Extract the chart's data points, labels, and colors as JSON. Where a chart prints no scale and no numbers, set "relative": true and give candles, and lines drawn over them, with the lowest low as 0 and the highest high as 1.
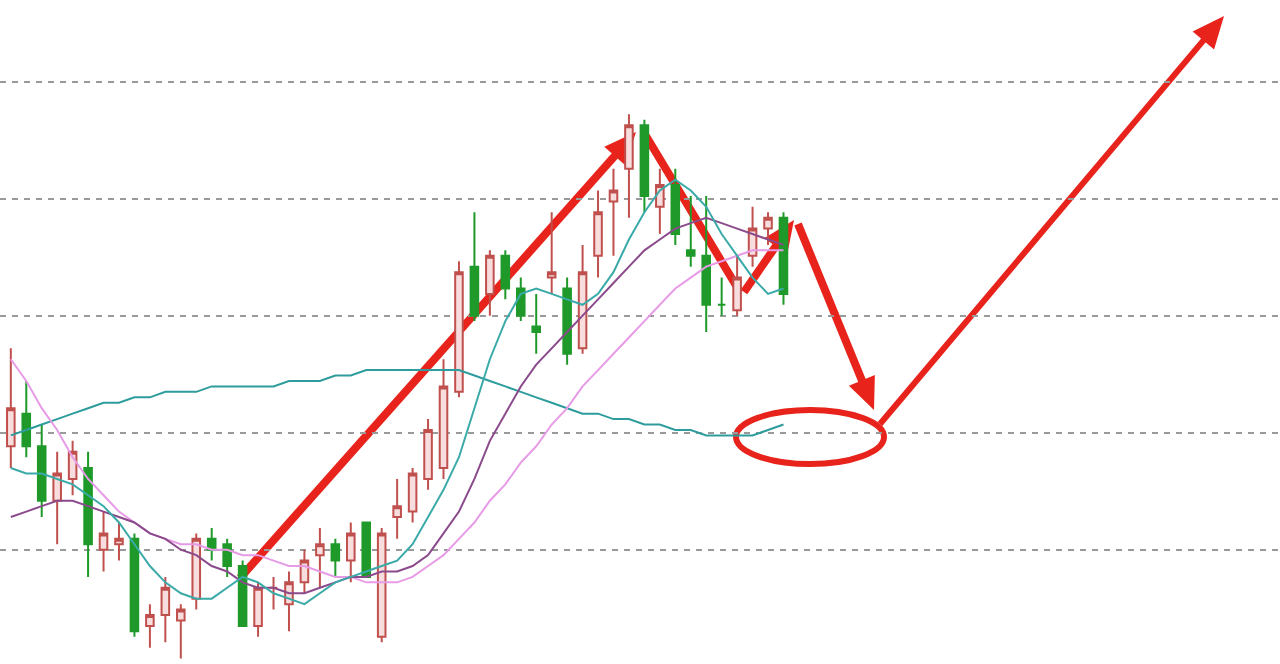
{
  "chart_data": {
    "type": "candlestick",
    "relative": true,
    "grid": "y",
    "categories": [
      null,
      null,
      null,
      null,
      null,
      null,
      null,
      null,
      null,
      null,
      null,
      null,
      null,
      null,
      null,
      null,
      null,
      null,
      null,
      null,
      null,
      null,
      null,
      null,
      null,
      null,
      null,
      null,
      null,
      null,
      null,
      null,
      null,
      null,
      null,
      null,
      null,
      null,
      null,
      null,
      null,
      null,
      null,
      null,
      null,
      null,
      null,
      null,
      null,
      null,
      null
    ],
    "ohlc": [
      [
        0.39,
        0.57,
        0.35,
        0.46
      ],
      [
        0.45,
        0.51,
        0.37,
        0.39
      ],
      [
        0.39,
        0.43,
        0.26,
        0.29
      ],
      [
        0.29,
        0.38,
        0.21,
        0.34
      ],
      [
        0.33,
        0.4,
        0.3,
        0.38
      ],
      [
        0.35,
        0.38,
        0.15,
        0.21
      ],
      [
        0.2,
        0.27,
        0.16,
        0.23
      ],
      [
        0.21,
        0.25,
        0.18,
        0.22
      ],
      [
        0.22,
        0.23,
        0.04,
        0.05
      ],
      [
        0.06,
        0.1,
        0.02,
        0.08
      ],
      [
        0.08,
        0.15,
        0.03,
        0.13
      ],
      [
        0.07,
        0.1,
        0,
        0.09
      ],
      [
        0.11,
        0.23,
        0.09,
        0.22
      ],
      [
        0.22,
        0.24,
        0.18,
        0.2
      ],
      [
        0.21,
        0.22,
        0.15,
        0.17
      ],
      [
        0.17,
        0.18,
        0.06,
        0.06
      ],
      [
        0.06,
        0.14,
        0.04,
        0.13
      ],
      [
        0.13,
        0.15,
        0.09,
        0.13
      ],
      [
        0.1,
        0.16,
        0.05,
        0.14
      ],
      [
        0.14,
        0.2,
        0.12,
        0.18
      ],
      [
        0.19,
        0.24,
        0.13,
        0.21
      ],
      [
        0.21,
        0.22,
        0.15,
        0.18
      ],
      [
        0.18,
        0.25,
        0.14,
        0.23
      ],
      [
        0.25,
        0.25,
        0.15,
        0.15
      ],
      [
        0.04,
        0.24,
        0.03,
        0.23
      ],
      [
        0.26,
        0.33,
        0.22,
        0.28
      ],
      [
        0.27,
        0.35,
        0.25,
        0.34
      ],
      [
        0.33,
        0.44,
        0.31,
        0.42
      ],
      [
        0.35,
        0.55,
        0.33,
        0.5
      ],
      [
        0.49,
        0.73,
        0.48,
        0.71
      ],
      [
        0.72,
        0.82,
        0.62,
        0.63
      ],
      [
        0.67,
        0.75,
        0.63,
        0.74
      ],
      [
        0.74,
        0.75,
        0.66,
        0.68
      ],
      [
        0.68,
        0.7,
        0.62,
        0.63
      ],
      [
        0.61,
        0.67,
        0.56,
        0.6
      ],
      [
        0.7,
        0.82,
        0.67,
        0.71
      ],
      [
        0.68,
        0.7,
        0.54,
        0.56
      ],
      [
        0.57,
        0.76,
        0.56,
        0.71
      ],
      [
        0.74,
        0.86,
        0.7,
        0.82
      ],
      [
        0.84,
        0.9,
        0.74,
        0.86
      ],
      [
        0.9,
        1.0,
        0.81,
        0.98
      ],
      [
        0.98,
        0.99,
        0.82,
        0.85
      ],
      [
        0.83,
        0.9,
        0.78,
        0.87
      ],
      [
        0.87,
        0.9,
        0.76,
        0.78
      ],
      [
        0.75,
        0.85,
        0.72,
        0.74
      ],
      [
        0.74,
        0.85,
        0.6,
        0.65
      ],
      [
        0.65,
        0.7,
        0.63,
        0.65
      ],
      [
        0.64,
        0.74,
        0.63,
        0.7
      ],
      [
        0.74,
        0.83,
        0.72,
        0.79
      ],
      [
        0.79,
        0.82,
        0.76,
        0.81
      ],
      [
        0.81,
        0.82,
        0.65,
        0.67
      ]
    ],
    "series": [
      {
        "type": "line",
        "color": "#2e9c9c",
        "values": [
          0.41,
          0.42,
          0.43,
          0.44,
          0.45,
          0.46,
          0.47,
          0.47,
          0.48,
          0.48,
          0.49,
          0.49,
          0.49,
          0.5,
          0.5,
          0.5,
          0.5,
          0.5,
          0.51,
          0.51,
          0.51,
          0.52,
          0.52,
          0.53,
          0.53,
          0.53,
          0.53,
          0.53,
          0.53,
          0.53,
          0.52,
          0.51,
          0.5,
          0.49,
          0.48,
          0.47,
          0.46,
          0.45,
          0.45,
          0.44,
          0.44,
          0.43,
          0.43,
          0.42,
          0.42,
          0.41,
          0.41,
          0.41,
          0.41,
          0.42,
          0.43
        ]
      },
      {
        "type": "line",
        "color": "#e79be7",
        "values": [
          0.55,
          0.51,
          0.46,
          0.42,
          0.37,
          0.33,
          0.3,
          0.27,
          0.25,
          0.23,
          0.22,
          0.21,
          0.21,
          0.2,
          0.2,
          0.19,
          0.19,
          0.18,
          0.17,
          0.17,
          0.16,
          0.15,
          0.15,
          0.14,
          0.14,
          0.14,
          0.15,
          0.17,
          0.19,
          0.22,
          0.25,
          0.29,
          0.32,
          0.36,
          0.39,
          0.43,
          0.46,
          0.5,
          0.53,
          0.56,
          0.59,
          0.62,
          0.65,
          0.68,
          0.7,
          0.72,
          0.73,
          0.74,
          0.75,
          0.75,
          0.75
        ]
      },
      {
        "type": "line",
        "color": "#8b4a8b",
        "values": [
          0.26,
          0.27,
          0.28,
          0.29,
          0.29,
          0.28,
          0.27,
          0.26,
          0.25,
          0.23,
          0.22,
          0.2,
          0.19,
          0.17,
          0.16,
          0.14,
          0.13,
          0.13,
          0.12,
          0.12,
          0.13,
          0.14,
          0.15,
          0.15,
          0.16,
          0.16,
          0.17,
          0.19,
          0.23,
          0.27,
          0.33,
          0.4,
          0.45,
          0.5,
          0.54,
          0.57,
          0.6,
          0.63,
          0.66,
          0.69,
          0.72,
          0.75,
          0.77,
          0.79,
          0.8,
          0.81,
          0.8,
          0.79,
          0.78,
          0.77,
          0.76
        ]
      },
      {
        "type": "line",
        "color": "#3aaaa8",
        "values": [
          0.35,
          0.34,
          0.34,
          0.33,
          0.32,
          0.3,
          0.28,
          0.25,
          0.21,
          0.17,
          0.14,
          0.12,
          0.11,
          0.11,
          0.13,
          0.15,
          0.14,
          0.12,
          0.11,
          0.1,
          0.12,
          0.14,
          0.15,
          0.16,
          0.17,
          0.18,
          0.21,
          0.26,
          0.31,
          0.37,
          0.46,
          0.55,
          0.62,
          0.67,
          0.68,
          0.67,
          0.66,
          0.65,
          0.67,
          0.71,
          0.77,
          0.82,
          0.86,
          0.88,
          0.86,
          0.83,
          0.78,
          0.74,
          0.7,
          0.67,
          0.68
        ]
      }
    ]
  }
}
